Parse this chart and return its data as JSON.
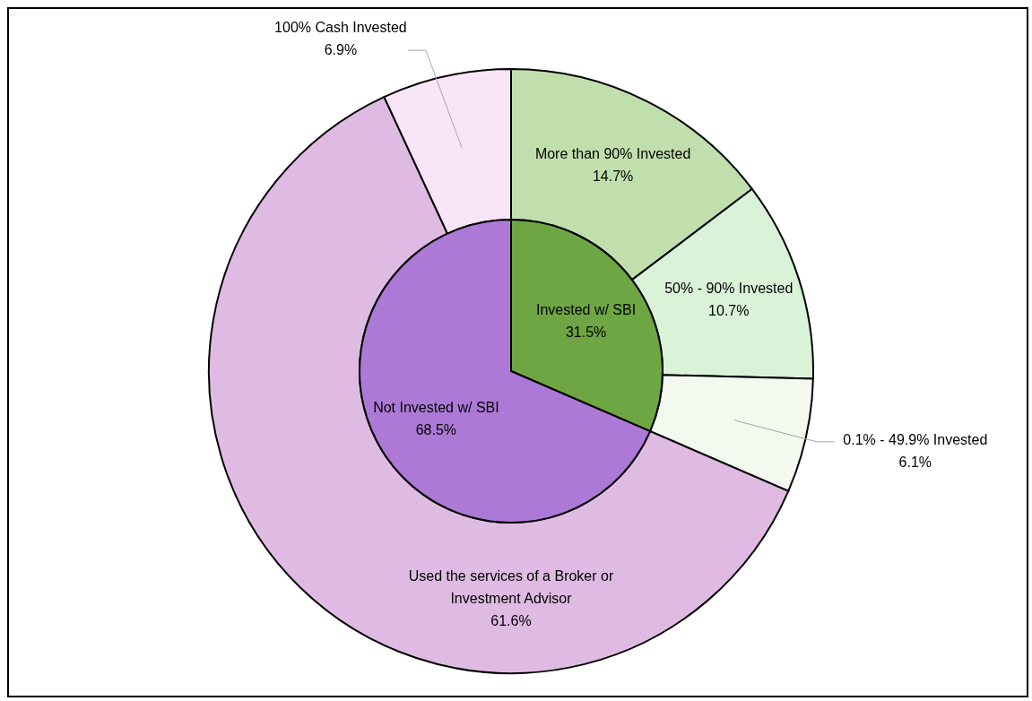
{
  "chart_data": [
    {
      "type": "pie",
      "categories": [
        "Invested w/ SBI",
        "Not Invested w/ SBI"
      ],
      "values": [
        31.5,
        68.5
      ],
      "colors": [
        "#6ea644",
        "#ad79d7"
      ],
      "value_labels": [
        "31.5%",
        "68.5%"
      ],
      "legend": false
    },
    {
      "type": "donut",
      "categories": [
        "More than 90% Invested",
        "50% - 90% Invested",
        "0.1% - 49.9% Invested",
        "Used the services of a Broker or Investment Advisor",
        "100% Cash Invested"
      ],
      "values": [
        14.7,
        10.7,
        6.1,
        61.6,
        6.9
      ],
      "colors": [
        "#c1dfac",
        "#daf2d8",
        "#f3f9ef",
        "#dfbbe3",
        "#f8e6f8"
      ],
      "value_labels": [
        "14.7%",
        "10.7%",
        "6.1%",
        "61.6%",
        "6.9%"
      ],
      "legend": false
    }
  ]
}
